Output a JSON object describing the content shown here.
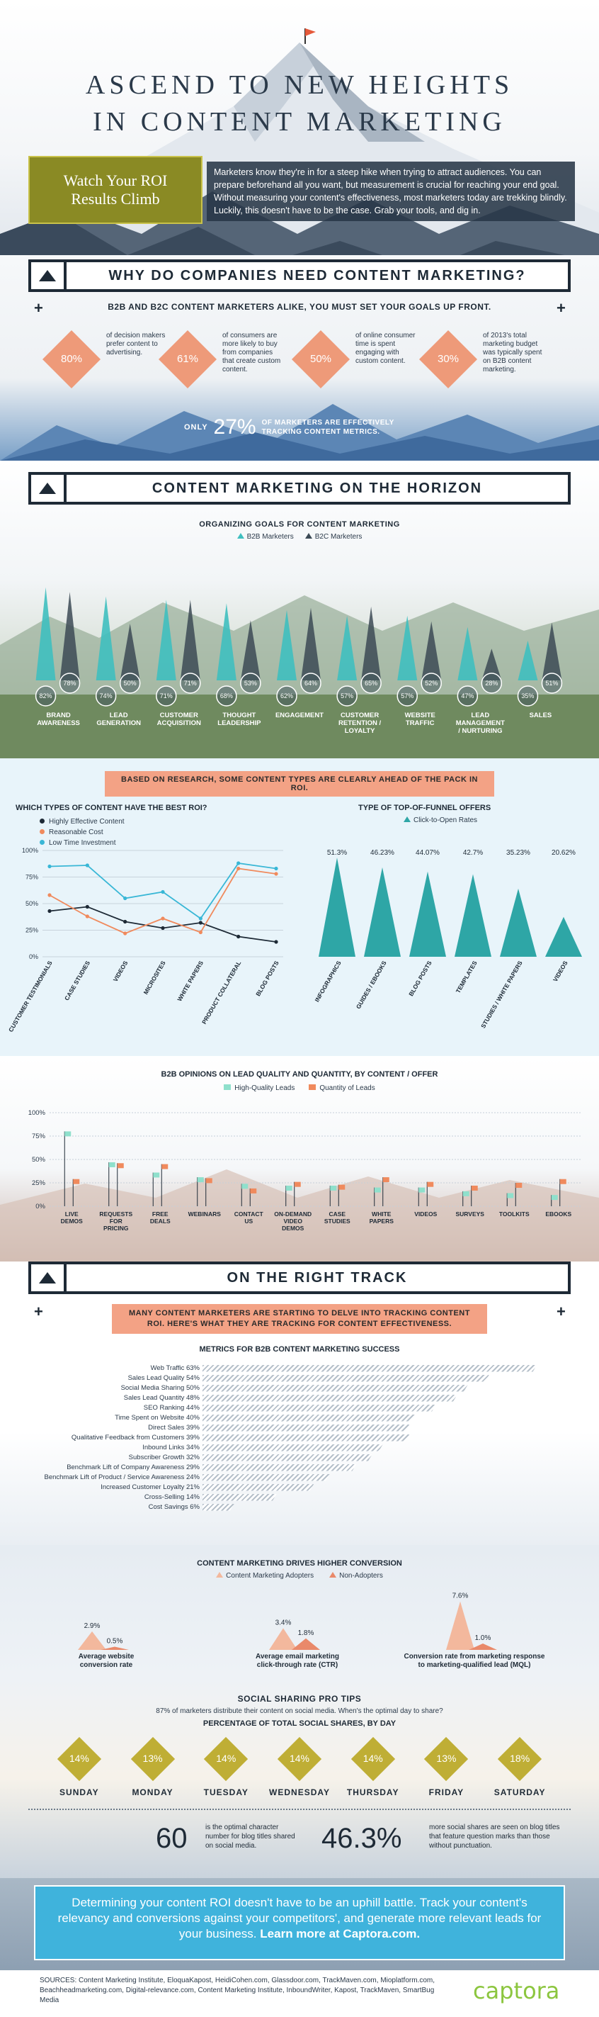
{
  "header": {
    "title_line1": "ASCEND TO NEW HEIGHTS",
    "title_line2": "IN CONTENT MARKETING",
    "roi_box_line1": "Watch Your ROI",
    "roi_box_line2": "Results Climb",
    "intro": "Marketers know they're in for a steep hike when trying to attract audiences. You can prepare beforehand all you want, but measurement is crucial for reaching your end goal. Without measuring your content's effectiveness, most marketers today are trekking blindly. Luckily, this doesn't have to be the case. Grab your tools, and dig in."
  },
  "why": {
    "heading": "WHY DO COMPANIES NEED CONTENT MARKETING?",
    "subheading": "B2B AND B2C CONTENT MARKETERS ALIKE, YOU MUST SET YOUR GOALS UP FRONT.",
    "stats": [
      {
        "value": "80%",
        "text": "of decision makers prefer content to advertising."
      },
      {
        "value": "61%",
        "text": "of consumers are more likely to buy from companies that create custom content."
      },
      {
        "value": "50%",
        "text": "of online consumer time is spent engaging with custom content."
      },
      {
        "value": "30%",
        "text": "of 2013's total marketing budget was typically spent on B2B content marketing."
      }
    ],
    "only_pre": "ONLY",
    "only_value": "27%",
    "only_post_1": "OF MARKETERS ARE EFFECTIVELY",
    "only_post_2": "TRACKING CONTENT METRICS."
  },
  "horizon": {
    "heading": "CONTENT MARKETING ON THE HORIZON",
    "chart_title": "ORGANIZING GOALS FOR CONTENT MARKETING",
    "legend_b2b": "B2B Marketers",
    "legend_b2c": "B2C Marketers",
    "goals": [
      {
        "label": "BRAND AWARENESS",
        "b2b": "82%",
        "b2c": "78%"
      },
      {
        "label": "LEAD GENERATION",
        "b2b": "74%",
        "b2c": "50%"
      },
      {
        "label": "CUSTOMER ACQUISITION",
        "b2b": "71%",
        "b2c": "71%"
      },
      {
        "label": "THOUGHT LEADERSHIP",
        "b2b": "68%",
        "b2c": "53%"
      },
      {
        "label": "ENGAGEMENT",
        "b2b": "62%",
        "b2c": "64%"
      },
      {
        "label": "CUSTOMER RETENTION / LOYALTY",
        "b2b": "57%",
        "b2c": "65%"
      },
      {
        "label": "WEBSITE TRAFFIC",
        "b2b": "57%",
        "b2c": "52%"
      },
      {
        "label": "LEAD MANAGEMENT / NURTURING",
        "b2b": "47%",
        "b2c": "28%"
      },
      {
        "label": "SALES",
        "b2b": "35%",
        "b2c": "51%"
      }
    ]
  },
  "research": {
    "pill": "BASED ON RESEARCH, SOME CONTENT TYPES ARE CLEARLY AHEAD OF THE PACK IN ROI.",
    "roi_title": "WHICH TYPES OF CONTENT HAVE THE BEST ROI?",
    "offers_title": "TYPE OF TOP-OF-FUNNEL OFFERS",
    "offers_legend": "Click-to-Open Rates"
  },
  "lead": {
    "title": "B2B OPINIONS ON LEAD QUALITY AND QUANTITY, BY CONTENT / OFFER"
  },
  "track": {
    "heading": "ON THE RIGHT TRACK",
    "pill_line1": "MANY CONTENT MARKETERS ARE STARTING TO DELVE INTO TRACKING CONTENT",
    "pill_line2": "ROI. HERE'S WHAT THEY ARE TRACKING FOR CONTENT EFFECTIVENESS.",
    "metrics_title": "METRICS FOR B2B CONTENT MARKETING SUCCESS"
  },
  "conversion": {
    "title": "CONTENT MARKETING DRIVES HIGHER CONVERSION",
    "legend_adopters": "Content Marketing Adopters",
    "legend_non": "Non-Adopters",
    "groups": [
      {
        "adopter": "2.9%",
        "non": "0.5%",
        "label_line1": "Average website",
        "label_line2": "conversion rate"
      },
      {
        "adopter": "3.4%",
        "non": "1.8%",
        "label_line1": "Average email marketing",
        "label_line2": "click-through rate (CTR)"
      },
      {
        "adopter": "7.6%",
        "non": "1.0%",
        "label_line1": "Conversion rate from marketing response",
        "label_line2": "to marketing-qualified lead (MQL)"
      }
    ]
  },
  "social": {
    "title": "SOCIAL SHARING PRO TIPS",
    "subtitle": "87% of marketers distribute their content on social media. When's the optimal day to share?",
    "pct_title": "PERCENTAGE OF TOTAL SOCIAL SHARES, BY DAY",
    "days": [
      {
        "day": "SUNDAY",
        "pct": "14%"
      },
      {
        "day": "MONDAY",
        "pct": "13%"
      },
      {
        "day": "TUESDAY",
        "pct": "14%"
      },
      {
        "day": "WEDNESDAY",
        "pct": "14%"
      },
      {
        "day": "THURSDAY",
        "pct": "14%"
      },
      {
        "day": "FRIDAY",
        "pct": "13%"
      },
      {
        "day": "SATURDAY",
        "pct": "18%"
      }
    ],
    "fact1_value": "60",
    "fact1_text": "is the optimal character number for blog titles shared on social media.",
    "fact2_value": "46.3%",
    "fact2_text": "more social shares are seen on blog titles that feature question marks than those without punctuation."
  },
  "footer": {
    "cta_part1": "Determining your content ROI doesn't have to be an uphill battle. Track your content's relevancy and conversions against your competitors', and generate more relevant leads for your business.",
    "cta_link": "Learn more at Captora.com.",
    "sources": "SOURCES: Content Marketing Institute, EloquaKapost, HeidiCohen.com, Glassdoor.com, TrackMaven.com, Mioplatform.com, Beachheadmarketing.com, Digital-relevance.com, Content Marketing Institute, InboundWriter, Kapost, TrackMaven, SmartBug Media",
    "logo": "captora"
  },
  "chart_data": [
    {
      "type": "bar",
      "title": "ORGANIZING GOALS FOR CONTENT MARKETING",
      "categories": [
        "BRAND AWARENESS",
        "LEAD GENERATION",
        "CUSTOMER ACQUISITION",
        "THOUGHT LEADERSHIP",
        "ENGAGEMENT",
        "CUSTOMER RETENTION / LOYALTY",
        "WEBSITE TRAFFIC",
        "LEAD MANAGEMENT / NURTURING",
        "SALES"
      ],
      "series": [
        {
          "name": "B2B Marketers",
          "values": [
            82,
            74,
            71,
            68,
            62,
            57,
            57,
            47,
            35
          ]
        },
        {
          "name": "B2C Marketers",
          "values": [
            78,
            50,
            71,
            53,
            64,
            65,
            52,
            28,
            51
          ]
        }
      ],
      "colors": {
        "b2b": "#3fbfbf",
        "b2c": "#3c4a55"
      }
    },
    {
      "type": "line",
      "title": "WHICH TYPES OF CONTENT HAVE THE BEST ROI?",
      "categories": [
        "CUSTOMER TESTIMONIALS",
        "CASE STUDIES",
        "VIDEOS",
        "MICROSITES",
        "WHITE PAPERS",
        "PRODUCT COLLATERAL",
        "BLOG POSTS"
      ],
      "series": [
        {
          "name": "Highly Effective Content",
          "color": "#1e2a36",
          "values": [
            43,
            47,
            33,
            27,
            32,
            19,
            14
          ]
        },
        {
          "name": "Reasonable Cost",
          "color": "#f08a5d",
          "values": [
            58,
            38,
            22,
            36,
            23,
            83,
            78
          ]
        },
        {
          "name": "Low Time Investment",
          "color": "#39b7d6",
          "values": [
            85,
            86,
            55,
            61,
            36,
            88,
            83
          ]
        }
      ],
      "yticks": [
        "100%",
        "75%",
        "50%",
        "25%",
        "0%"
      ],
      "ylim": [
        0,
        100
      ]
    },
    {
      "type": "bar",
      "title": "TYPE OF TOP-OF-FUNNEL OFFERS",
      "categories": [
        "INFOGRAPHICS",
        "GUIDES / EBOOKS",
        "BLOG POSTS",
        "TEMPLATES",
        "STUDIES / WHITE PAPERS",
        "VIDEOS"
      ],
      "series": [
        {
          "name": "Click-to-Open Rates",
          "values": [
            51.3,
            46.23,
            44.07,
            42.7,
            35.23,
            20.62
          ]
        }
      ],
      "labels": [
        "51.3%",
        "46.23%",
        "44.07%",
        "42.7%",
        "35.23%",
        "20.62%"
      ],
      "color": "#2ea6a6"
    },
    {
      "type": "bar",
      "title": "B2B OPINIONS ON LEAD QUALITY AND QUANTITY, BY CONTENT / OFFER",
      "categories": [
        "LIVE DEMOS",
        "REQUESTS FOR PRICING",
        "FREE DEALS",
        "WEBINARS",
        "CONTACT US",
        "ON-DEMAND VIDEO DEMOS",
        "CASE STUDIES",
        "WHITE PAPERS",
        "VIDEOS",
        "SURVEYS",
        "TOOLKITS",
        "EBOOKS"
      ],
      "series": [
        {
          "name": "High-Quality Leads",
          "color": "#8fe0cc",
          "values": [
            80,
            47,
            36,
            31,
            24,
            22,
            22,
            20,
            20,
            16,
            14,
            12
          ]
        },
        {
          "name": "Quantity of Leads",
          "color": "#f08a5d",
          "values": [
            29,
            46,
            45,
            30,
            19,
            26,
            23,
            31,
            26,
            22,
            25,
            29
          ]
        }
      ],
      "yticks": [
        "100%",
        "75%",
        "50%",
        "25%",
        "0%"
      ],
      "ylim": [
        0,
        100
      ]
    },
    {
      "type": "bar",
      "title": "METRICS FOR B2B CONTENT MARKETING SUCCESS",
      "categories": [
        "Web Traffic",
        "Sales Lead Quality",
        "Social Media Sharing",
        "Sales Lead Quantity",
        "SEO Ranking",
        "Time Spent on Website",
        "Direct Sales",
        "Qualitative Feedback from Customers",
        "Inbound Links",
        "Subscriber Growth",
        "Benchmark Lift of Company Awareness",
        "Benchmark Lift of Product / Service Awareness",
        "Increased Customer Loyalty",
        "Cross-Selling",
        "Cost Savings"
      ],
      "values": [
        63,
        54,
        50,
        48,
        44,
        40,
        39,
        39,
        34,
        32,
        29,
        24,
        21,
        14,
        6
      ],
      "labels": [
        "63%",
        "54%",
        "50%",
        "48%",
        "44%",
        "40%",
        "39%",
        "39%",
        "34%",
        "32%",
        "29%",
        "24%",
        "21%",
        "14%",
        "6%"
      ]
    }
  ]
}
